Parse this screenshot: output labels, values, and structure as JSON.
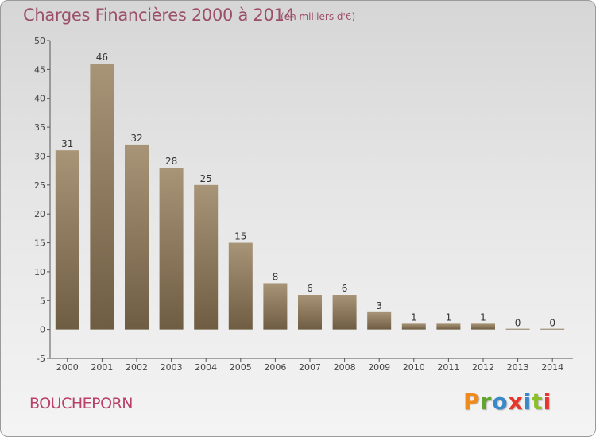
{
  "page": {
    "commune": "BOUCHEPORN",
    "logo": {
      "text": "Proxiti",
      "letter_colors": [
        "#f08a1c",
        "#5fa52e",
        "#3b88c9",
        "#e8352b",
        "#3b88c9",
        "#8cbf2a",
        "#e8352b"
      ]
    }
  },
  "chart_data": {
    "type": "bar",
    "title": "Charges Financières 2000 à 2014",
    "subtitle": "(en milliers d'€)",
    "xlabel": "",
    "ylabel": "",
    "categories": [
      "2000",
      "2001",
      "2002",
      "2003",
      "2004",
      "2005",
      "2006",
      "2007",
      "2008",
      "2009",
      "2010",
      "2011",
      "2012",
      "2013",
      "2014"
    ],
    "values": [
      31,
      46,
      32,
      28,
      25,
      15,
      8,
      6,
      6,
      3,
      1,
      1,
      1,
      0,
      0
    ],
    "value_labels": [
      "31",
      "46",
      "32",
      "28",
      "25",
      "15",
      "8",
      "6",
      "6",
      "3",
      "1",
      "1",
      "1",
      "0",
      "0"
    ],
    "ylim": [
      -5,
      50
    ],
    "yticks": [
      -5,
      0,
      5,
      10,
      15,
      20,
      25,
      30,
      35,
      40,
      45,
      50
    ],
    "grid": false,
    "legend": "none",
    "colors": {
      "bar_light": "#a89477",
      "bar_dark": "#6f5d43",
      "axis": "#555555",
      "title": "#9b4f6a",
      "commune": "#b8406a"
    }
  }
}
